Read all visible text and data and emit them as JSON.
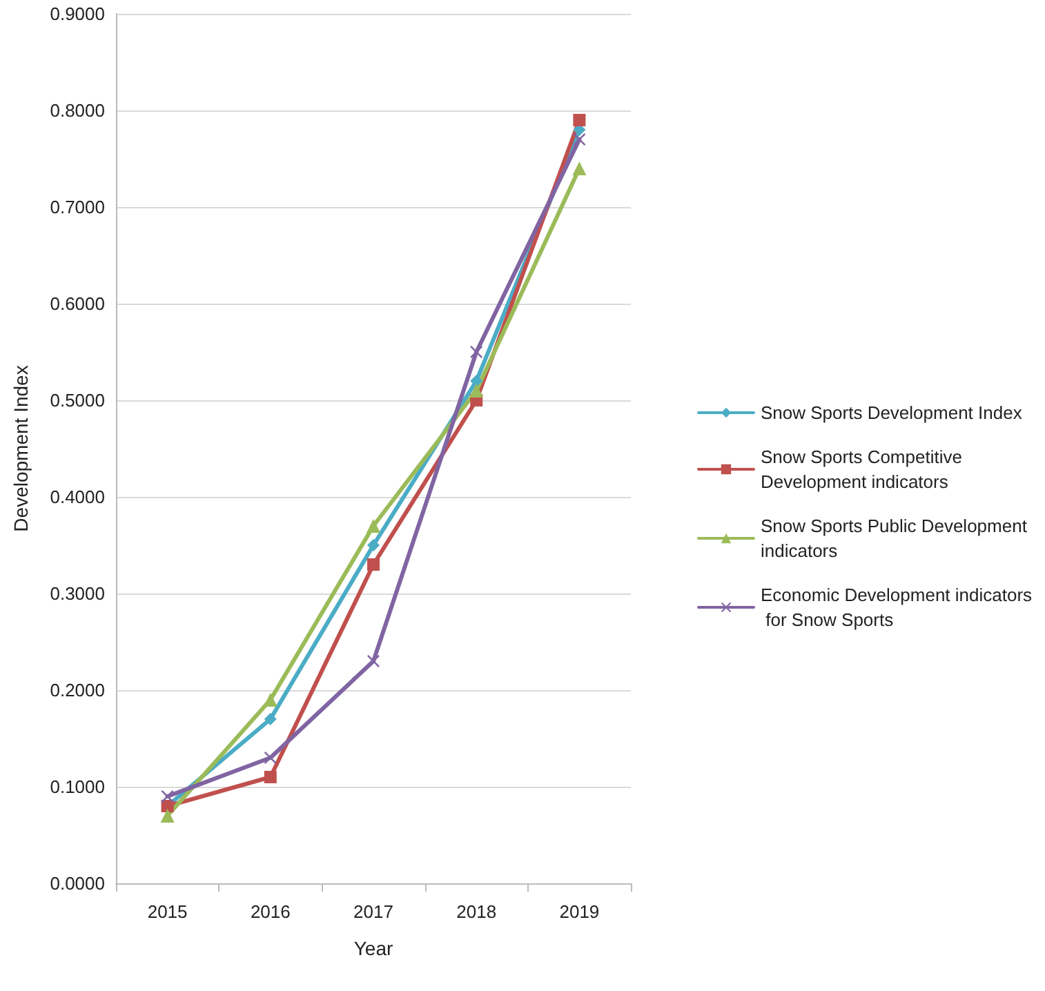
{
  "chart_data": {
    "type": "line",
    "xlabel": "Year",
    "ylabel": "Development Index",
    "categories": [
      "2015",
      "2016",
      "2017",
      "2018",
      "2019"
    ],
    "series": [
      {
        "name": "Snow Sports Development Index",
        "color": "#4bacc6",
        "marker": "diamond",
        "values": [
          0.08,
          0.17,
          0.35,
          0.52,
          0.78
        ]
      },
      {
        "name": "Snow Sports Competitive Development indicators",
        "color": "#c0504d",
        "marker": "square",
        "values": [
          0.08,
          0.11,
          0.33,
          0.5,
          0.79
        ]
      },
      {
        "name": "Snow Sports Public Development indicators",
        "color": "#9bbb59",
        "marker": "triangle",
        "values": [
          0.07,
          0.19,
          0.37,
          0.51,
          0.74
        ]
      },
      {
        "name": "Economic Development indicators for Snow Sports",
        "color": "#8064a2",
        "marker": "cross",
        "values": [
          0.09,
          0.13,
          0.23,
          0.55,
          0.77
        ]
      }
    ],
    "ylim": [
      0,
      0.9
    ],
    "yticks": [
      {
        "value": 0,
        "label": "0.0000"
      },
      {
        "value": 0.1,
        "label": "0.1000"
      },
      {
        "value": 0.2,
        "label": "0.2000"
      },
      {
        "value": 0.3,
        "label": "0.3000"
      },
      {
        "value": 0.4,
        "label": "0.4000"
      },
      {
        "value": 0.5,
        "label": "0.5000"
      },
      {
        "value": 0.6,
        "label": "0.6000"
      },
      {
        "value": 0.7,
        "label": "0.7000"
      },
      {
        "value": 0.8,
        "label": "0.8000"
      },
      {
        "value": 0.9,
        "label": "0.9000"
      }
    ],
    "grid": "y",
    "legend": "right",
    "line_style": "solid"
  }
}
